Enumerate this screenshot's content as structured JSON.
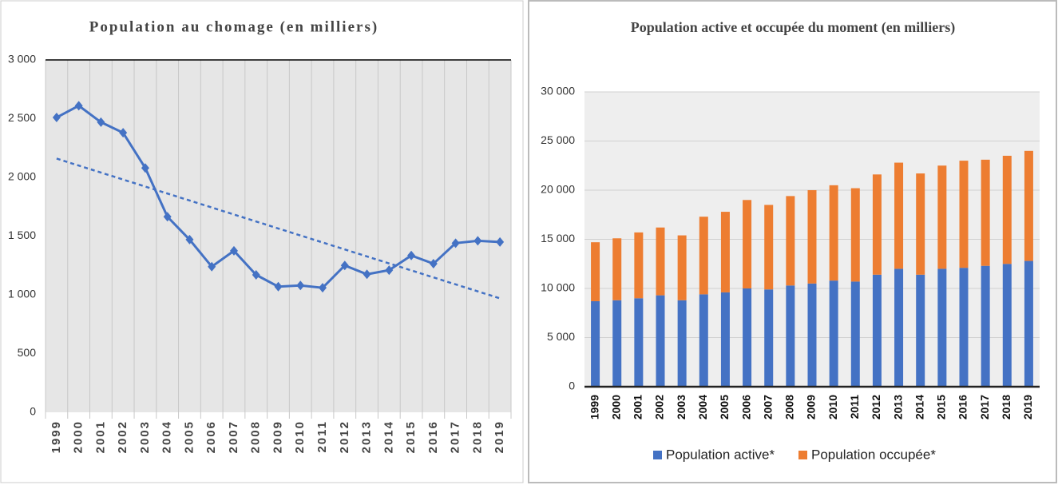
{
  "chart_data": [
    {
      "type": "line",
      "title": "Population au chomage (en milliers)",
      "categories": [
        "1999",
        "2000",
        "2001",
        "2002",
        "2003",
        "2004",
        "2005",
        "2006",
        "2007",
        "2008",
        "2009",
        "2010",
        "2011",
        "2012",
        "2013",
        "2014",
        "2015",
        "2016",
        "2017",
        "2018",
        "2019"
      ],
      "values": [
        2510,
        2610,
        2470,
        2380,
        2080,
        1665,
        1470,
        1240,
        1375,
        1170,
        1070,
        1080,
        1060,
        1250,
        1175,
        1210,
        1335,
        1265,
        1440,
        1460,
        1450
      ],
      "color": "#4472c4",
      "trendline": {
        "values": [
          2160,
          970
        ],
        "style": "dashed"
      },
      "ylim": [
        0,
        3000
      ],
      "yticks": [
        0,
        500,
        {
          "value": 1000,
          "label": "1 000"
        },
        {
          "value": 1500,
          "label": "1 500"
        },
        {
          "value": 2000,
          "label": "2 000"
        },
        {
          "value": 2500,
          "label": "2 500"
        },
        {
          "value": 3000,
          "label": "3 000"
        }
      ],
      "grid": "x"
    },
    {
      "type": "bar",
      "title": "Population active et occupée du moment (en milliers)",
      "categories": [
        "1999",
        "2000",
        "2001",
        "2002",
        "2003",
        "2004",
        "2005",
        "2006",
        "2007",
        "2008",
        "2009",
        "2010",
        "2011",
        "2012",
        "2013",
        "2014",
        "2015",
        "2016",
        "2017",
        "2018",
        "2019"
      ],
      "stacked": true,
      "series": [
        {
          "name": "Population active*",
          "color": "#4472c4",
          "values": [
            8700,
            8800,
            9000,
            9300,
            8800,
            9400,
            9600,
            10000,
            9900,
            10300,
            10500,
            10800,
            10700,
            11400,
            12000,
            11400,
            12000,
            12100,
            12300,
            12500,
            12800
          ]
        },
        {
          "name": "Population occupée*",
          "color": "#ed7d31",
          "values": [
            6000,
            6300,
            6700,
            6900,
            6600,
            7900,
            8200,
            9000,
            8600,
            9100,
            9500,
            9700,
            9500,
            10200,
            10800,
            10300,
            10500,
            10900,
            10800,
            11000,
            11200
          ]
        }
      ],
      "ylim": [
        0,
        30000
      ],
      "yticks": [
        0,
        {
          "value": 5000,
          "label": "5 000"
        },
        {
          "value": 10000,
          "label": "10 000"
        },
        {
          "value": 15000,
          "label": "15 000"
        },
        {
          "value": 20000,
          "label": "20 000"
        },
        {
          "value": 25000,
          "label": "25 000"
        },
        {
          "value": 30000,
          "label": "30 000"
        }
      ],
      "grid": "y",
      "legend": "bottom"
    }
  ]
}
